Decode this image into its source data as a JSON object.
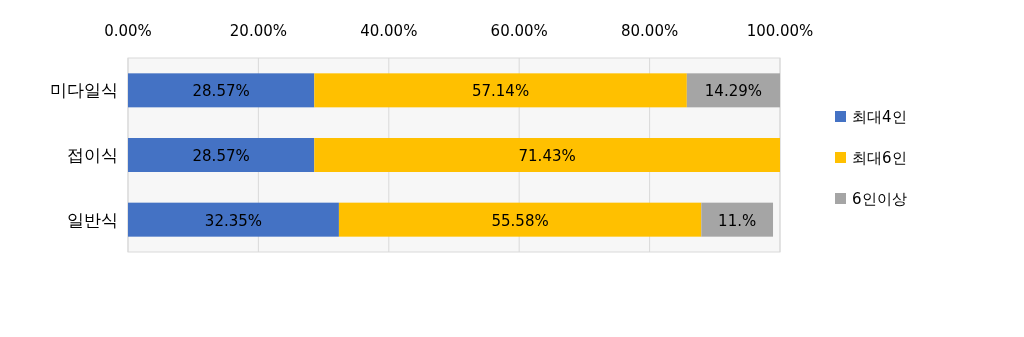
{
  "chart_data": {
    "type": "bar",
    "orientation": "horizontal",
    "stacked": true,
    "categories": [
      "미다일식",
      "접이식",
      "일반식"
    ],
    "series": [
      {
        "name": "최대4인",
        "color": "#4472c4",
        "values": [
          28.57,
          28.57,
          32.35
        ],
        "value_labels": [
          "28.57%",
          "28.57%",
          "32.35%"
        ]
      },
      {
        "name": "최대6인",
        "color": "#ffc000",
        "values": [
          57.14,
          71.43,
          55.58
        ],
        "value_labels": [
          "57.14%",
          "71.43%",
          "55.58%"
        ]
      },
      {
        "name": "6인이상",
        "color": "#a5a5a5",
        "values": [
          14.29,
          null,
          11
        ],
        "value_labels": [
          "14.29%",
          null,
          "11.%"
        ]
      }
    ],
    "xlim": [
      0,
      100
    ],
    "xticks": [
      {
        "value": 0,
        "label": "0.00%"
      },
      {
        "value": 20,
        "label": "20.00%"
      },
      {
        "value": 40,
        "label": "40.00%"
      },
      {
        "value": 60,
        "label": "60.00%"
      },
      {
        "value": 80,
        "label": "80.00%"
      },
      {
        "value": 100,
        "label": "100.00%"
      }
    ],
    "grid": "x",
    "legend": "right"
  }
}
